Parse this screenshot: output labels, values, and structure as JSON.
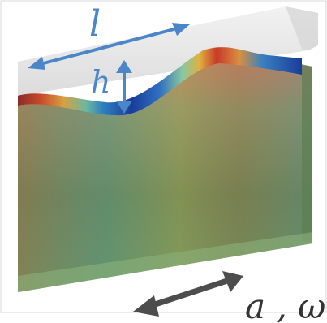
{
  "labels": {
    "length": "l",
    "height": "h",
    "amplitude_frequency": "a , ω"
  },
  "colors": {
    "dimension_arrow": "#4a86c8",
    "motion_arrow": "#4d4d4d",
    "label_blue": "#4a86c8",
    "label_dark": "#333333",
    "slab_top": "#e6e6e6",
    "slab_body": "#6b8f5a"
  }
}
